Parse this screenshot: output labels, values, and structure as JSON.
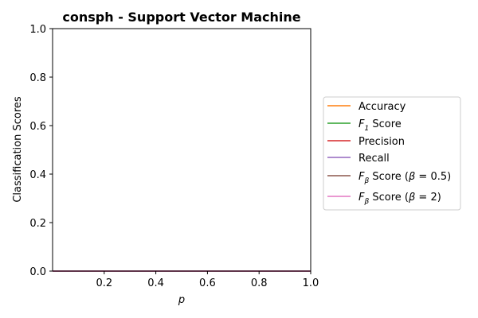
{
  "chart_data": {
    "type": "line",
    "title": "consph - Support Vector Machine",
    "xlabel": "p",
    "ylabel": "Classification Scores",
    "xlim": [
      0.0,
      1.0
    ],
    "ylim": [
      0.0,
      1.0
    ],
    "x_ticks": [
      0.2,
      0.4,
      0.6,
      0.8,
      1.0
    ],
    "x_tick_labels": [
      "0.2",
      "0.4",
      "0.6",
      "0.8",
      "1.0"
    ],
    "y_ticks": [
      0.0,
      0.2,
      0.4,
      0.6,
      0.8,
      1.0
    ],
    "y_tick_labels": [
      "0.0",
      "0.2",
      "0.4",
      "0.6",
      "0.8",
      "1.0"
    ],
    "grid": false,
    "legend_placement": "outside right",
    "x": [
      0.0,
      1.0
    ],
    "series": [
      {
        "name": "Accuracy",
        "color": "#ff7f0e",
        "values": [
          0.0,
          0.0
        ]
      },
      {
        "name": "F1 Score",
        "color": "#2ca02c",
        "values": [
          0.0,
          0.0
        ]
      },
      {
        "name": "Precision",
        "color": "#d62728",
        "values": [
          0.0,
          0.0
        ]
      },
      {
        "name": "Recall",
        "color": "#9467bd",
        "values": [
          0.0,
          0.0
        ]
      },
      {
        "name": "Fβ Score (β = 0.5)",
        "color": "#8c564b",
        "values": [
          0.0,
          0.0
        ]
      },
      {
        "name": "Fβ Score (β = 2)",
        "color": "#e377c2",
        "values": [
          0.0,
          0.0
        ]
      }
    ],
    "legend": {
      "entries": [
        {
          "base": "Accuracy"
        },
        {
          "prefix": "F",
          "sub": "1",
          "suffix": " Score"
        },
        {
          "base": "Precision"
        },
        {
          "base": "Recall"
        },
        {
          "prefix": "F",
          "sub": "β",
          "suffix": " Score (",
          "italic_param": "β",
          "param_value": " = 0.5)"
        },
        {
          "prefix": "F",
          "sub": "β",
          "suffix": " Score (",
          "italic_param": "β",
          "param_value": " = 2)"
        }
      ]
    }
  }
}
